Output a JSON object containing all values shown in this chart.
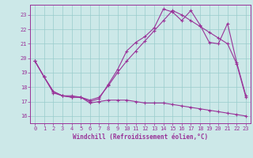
{
  "xlabel": "Windchill (Refroidissement éolien,°C)",
  "background_color": "#cce8e8",
  "grid_color": "#99cccc",
  "line_color": "#993399",
  "xlim": [
    -0.5,
    23.5
  ],
  "ylim": [
    15.5,
    23.7
  ],
  "xticks": [
    0,
    1,
    2,
    3,
    4,
    5,
    6,
    7,
    8,
    9,
    10,
    11,
    12,
    13,
    14,
    15,
    16,
    17,
    18,
    19,
    20,
    21,
    22,
    23
  ],
  "yticks": [
    16,
    17,
    18,
    19,
    20,
    21,
    22,
    23
  ],
  "line1_x": [
    0,
    1,
    2,
    3,
    4,
    5,
    6,
    7,
    8,
    9,
    10,
    11,
    12,
    13,
    14,
    15,
    16,
    17,
    18,
    19,
    20,
    21,
    22,
    23
  ],
  "line1_y": [
    19.8,
    18.7,
    17.6,
    17.4,
    17.3,
    17.3,
    17.0,
    17.2,
    18.2,
    19.2,
    20.5,
    21.1,
    21.5,
    22.1,
    23.4,
    23.2,
    22.6,
    23.3,
    22.3,
    21.1,
    21.0,
    22.4,
    19.7,
    17.4
  ],
  "line2_x": [
    0,
    1,
    2,
    3,
    4,
    5,
    6,
    7,
    8,
    9,
    10,
    11,
    12,
    13,
    14,
    15,
    16,
    17,
    18,
    19,
    20,
    21,
    22,
    23
  ],
  "line2_y": [
    19.8,
    18.7,
    17.7,
    17.4,
    17.3,
    17.3,
    16.9,
    17.0,
    17.1,
    17.1,
    17.1,
    17.0,
    16.9,
    16.9,
    16.9,
    16.8,
    16.7,
    16.6,
    16.5,
    16.4,
    16.3,
    16.2,
    16.1,
    16.0
  ],
  "line3_x": [
    0,
    1,
    2,
    3,
    4,
    5,
    6,
    7,
    8,
    9,
    10,
    11,
    12,
    13,
    14,
    15,
    16,
    17,
    18,
    19,
    20,
    21,
    22,
    23
  ],
  "line3_y": [
    19.8,
    18.7,
    17.7,
    17.4,
    17.4,
    17.3,
    17.1,
    17.3,
    18.1,
    19.0,
    19.8,
    20.5,
    21.2,
    21.9,
    22.6,
    23.3,
    23.0,
    22.6,
    22.2,
    21.8,
    21.4,
    21.0,
    19.6,
    17.3
  ]
}
